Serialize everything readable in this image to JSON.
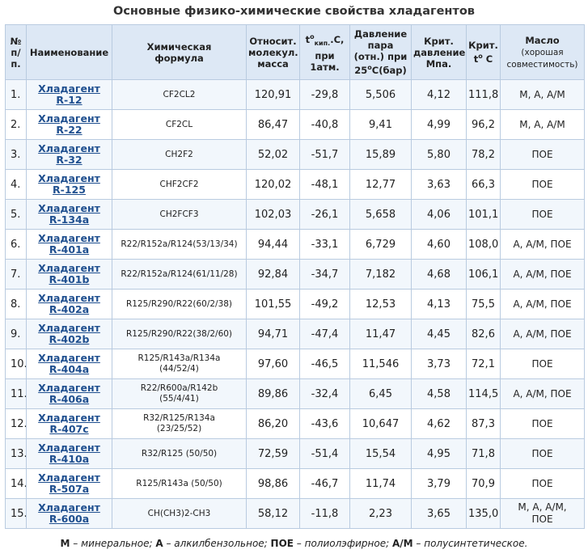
{
  "title": "Основные физико-химические свойства хладагентов",
  "headers": {
    "num": [
      "№",
      "п/",
      "п."
    ],
    "name": "Наименование",
    "formula": [
      "Химическая",
      "формула"
    ],
    "mass": [
      "Относит.",
      "молекул.",
      "масса"
    ],
    "boil_t": "t",
    "boil_deg": "о",
    "boil_sub": "кип.",
    "boil_rest": ".С,",
    "boil_lines": [
      "при",
      "1атм."
    ],
    "pressure": [
      "Давление",
      "пара",
      "(отн.) при"
    ],
    "pressure_temp": "25",
    "pressure_deg": "о",
    "pressure_rest": "С(бар)",
    "crit_p": [
      "Крит.",
      "давление",
      "Мпа."
    ],
    "crit_t_a": "Крит.",
    "crit_t_b": "t",
    "crit_t_deg": "о",
    "crit_t_c": " С",
    "oil": "Масло",
    "oil_note": [
      "(хорошая",
      "совместимость)"
    ]
  },
  "rows": [
    {
      "num": "1.",
      "name_a": "Хладагент",
      "name_b": "R-12",
      "formula": [
        "CF2CL2"
      ],
      "mass": "120,91",
      "boil": "-29,8",
      "pressure": "5,506",
      "crit_p": "4,12",
      "crit_t": "111,8",
      "oil": [
        "M, A, A/M"
      ]
    },
    {
      "num": "2.",
      "name_a": "Хладагент",
      "name_b": "R-22",
      "formula": [
        "CF2CL"
      ],
      "mass": "86,47",
      "boil": "-40,8",
      "pressure": "9,41",
      "crit_p": "4,99",
      "crit_t": "96,2",
      "oil": [
        "M, A, A/M"
      ]
    },
    {
      "num": "3.",
      "name_a": "Хладагент",
      "name_b": "R-32",
      "formula": [
        "CH2F2"
      ],
      "mass": "52,02",
      "boil": "-51,7",
      "pressure": "15,89",
      "crit_p": "5,80",
      "crit_t": "78,2",
      "oil": [
        "ПОЕ"
      ]
    },
    {
      "num": "4.",
      "name_a": "Хладагент",
      "name_b": "R-125",
      "formula": [
        "CHF2CF2"
      ],
      "mass": "120,02",
      "boil": "-48,1",
      "pressure": "12,77",
      "crit_p": "3,63",
      "crit_t": "66,3",
      "oil": [
        "ПОЕ"
      ]
    },
    {
      "num": "5.",
      "name_a": "Хладагент",
      "name_b": "R-134a",
      "formula": [
        "CH2FCF3"
      ],
      "mass": "102,03",
      "boil": "-26,1",
      "pressure": "5,658",
      "crit_p": "4,06",
      "crit_t": "101,1",
      "oil": [
        "ПОЕ"
      ]
    },
    {
      "num": "6.",
      "name_a": "Хладагент",
      "name_b": "R-401a",
      "formula": [
        "R22/R152a/R124(53/13/34)"
      ],
      "mass": "94,44",
      "boil": "-33,1",
      "pressure": "6,729",
      "crit_p": "4,60",
      "crit_t": "108,0",
      "oil": [
        "A, A/M, ПОЕ"
      ]
    },
    {
      "num": "7.",
      "name_a": "Хладагент",
      "name_b": "R-401b",
      "formula": [
        "R22/R152a/R124(61/11/28)"
      ],
      "mass": "92,84",
      "boil": "-34,7",
      "pressure": "7,182",
      "crit_p": "4,68",
      "crit_t": "106,1",
      "oil": [
        "A, A/M, ПОЕ"
      ]
    },
    {
      "num": "8.",
      "name_a": "Хладагент",
      "name_b": "R-402a",
      "formula": [
        "R125/R290/R22(60/2/38)"
      ],
      "mass": "101,55",
      "boil": "-49,2",
      "pressure": "12,53",
      "crit_p": "4,13",
      "crit_t": "75,5",
      "oil": [
        "A, A/M, ПОЕ"
      ]
    },
    {
      "num": "9.",
      "name_a": "Хладагент",
      "name_b": "R-402b",
      "formula": [
        "R125/R290/R22(38/2/60)"
      ],
      "mass": "94,71",
      "boil": "-47,4",
      "pressure": "11,47",
      "crit_p": "4,45",
      "crit_t": "82,6",
      "oil": [
        "A, A/M, ПОЕ"
      ]
    },
    {
      "num": "10.",
      "name_a": "Хладагент",
      "name_b": "R-404a",
      "formula": [
        "R125/R143a/R134a",
        "(44/52/4)"
      ],
      "mass": "97,60",
      "boil": "-46,5",
      "pressure": "11,546",
      "crit_p": "3,73",
      "crit_t": "72,1",
      "oil": [
        "ПОЕ"
      ]
    },
    {
      "num": "11.",
      "name_a": "Хладагент",
      "name_b": "R-406a",
      "formula": [
        "R22/R600a/R142b",
        "(55/4/41)"
      ],
      "mass": "89,86",
      "boil": "-32,4",
      "pressure": "6,45",
      "crit_p": "4,58",
      "crit_t": "114,5",
      "oil": [
        "A, A/M, ПОЕ"
      ]
    },
    {
      "num": "12.",
      "name_a": "Хладагент",
      "name_b": "R-407c",
      "formula": [
        "R32/R125/R134a",
        "(23/25/52)"
      ],
      "mass": "86,20",
      "boil": "-43,6",
      "pressure": "10,647",
      "crit_p": "4,62",
      "crit_t": "87,3",
      "oil": [
        "ПОЕ"
      ]
    },
    {
      "num": "13.",
      "name_a": "Хладагент",
      "name_b": "R-410a",
      "formula": [
        "R32/R125 (50/50)"
      ],
      "mass": "72,59",
      "boil": "-51,4",
      "pressure": "15,54",
      "crit_p": "4,95",
      "crit_t": "71,8",
      "oil": [
        "ПОЕ"
      ]
    },
    {
      "num": "14.",
      "name_a": "Хладагент",
      "name_b": "R-507a",
      "formula": [
        "R125/R143a (50/50)"
      ],
      "mass": "98,86",
      "boil": "-46,7",
      "pressure": "11,74",
      "crit_p": "3,79",
      "crit_t": "70,9",
      "oil": [
        "ПОЕ"
      ]
    },
    {
      "num": "15.",
      "name_a": "Хладагент",
      "name_b": "R-600a",
      "formula": [
        "CH(CH3)2-CH3"
      ],
      "mass": "58,12",
      "boil": "-11,8",
      "pressure": "2,23",
      "crit_p": "3,65",
      "crit_t": "135,0",
      "oil": [
        "M, A, A/M,",
        "ПОЕ"
      ]
    }
  ],
  "footnote": {
    "m_key": "M",
    "m_text": " – минеральное; ",
    "a_key": "A",
    "a_text": " – алкилбензольное; ",
    "poe_key": "ПОЕ",
    "poe_text": " – полиолэфирное; ",
    "am_key": "A/M",
    "am_text": " – полусинтетическое."
  }
}
